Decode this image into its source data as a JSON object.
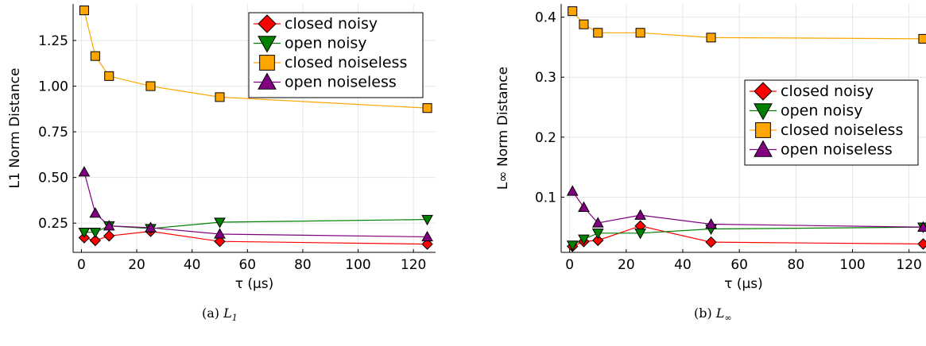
{
  "figure": {
    "captions": [
      {
        "label": "(a)",
        "symbol": "L",
        "subscript": "1"
      },
      {
        "label": "(b)",
        "symbol": "L",
        "subscript": "∞"
      }
    ]
  },
  "chart_data": [
    {
      "type": "line",
      "xlabel": "τ (μs)",
      "ylabel": "L1 Norm Distance",
      "xlim": [
        -3,
        128
      ],
      "ylim": [
        0.09,
        1.45
      ],
      "xticks": [
        0,
        20,
        40,
        60,
        80,
        100,
        120
      ],
      "yticks": [
        0.25,
        0.5,
        0.75,
        1.0,
        1.25
      ],
      "ytick_labels": [
        "0.25",
        "0.50",
        "0.75",
        "1.00",
        "1.25"
      ],
      "grid": true,
      "legend_position": "top-right",
      "x": [
        1,
        5,
        10,
        25,
        50,
        125
      ],
      "series": [
        {
          "name": "closed noisy",
          "color": "#ff0000",
          "marker": "diamond",
          "values": [
            0.17,
            0.155,
            0.18,
            0.205,
            0.15,
            0.135
          ]
        },
        {
          "name": "open noisy",
          "color": "#008000",
          "marker": "triangle-down",
          "values": [
            0.2,
            0.2,
            0.235,
            0.22,
            0.255,
            0.27
          ]
        },
        {
          "name": "closed noiseless",
          "color": "#ffa500",
          "marker": "square",
          "values": [
            1.415,
            1.165,
            1.055,
            1.0,
            0.94,
            0.88
          ]
        },
        {
          "name": "open noiseless",
          "color": "#800080",
          "marker": "triangle-up",
          "values": [
            0.53,
            0.305,
            0.235,
            0.225,
            0.19,
            0.175
          ]
        }
      ]
    },
    {
      "type": "line",
      "xlabel": "τ (μs)",
      "ylabel": "L∞ Norm Distance",
      "xlim": [
        -3,
        126
      ],
      "ylim": [
        0.008,
        0.422
      ],
      "xticks": [
        0,
        20,
        40,
        60,
        80,
        100,
        120
      ],
      "yticks": [
        0.1,
        0.2,
        0.3,
        0.4
      ],
      "ytick_labels": [
        "0.1",
        "0.2",
        "0.3",
        "0.4"
      ],
      "grid": true,
      "legend_position": "right",
      "x": [
        1,
        5,
        10,
        25,
        50,
        125
      ],
      "series": [
        {
          "name": "closed noisy",
          "color": "#ff0000",
          "marker": "diamond",
          "values": [
            0.018,
            0.026,
            0.028,
            0.052,
            0.025,
            0.022
          ]
        },
        {
          "name": "open noisy",
          "color": "#008000",
          "marker": "triangle-down",
          "values": [
            0.02,
            0.03,
            0.04,
            0.04,
            0.047,
            0.05
          ]
        },
        {
          "name": "closed noiseless",
          "color": "#ffa500",
          "marker": "square",
          "values": [
            0.41,
            0.388,
            0.374,
            0.374,
            0.366,
            0.364
          ]
        },
        {
          "name": "open noiseless",
          "color": "#800080",
          "marker": "triangle-up",
          "values": [
            0.11,
            0.083,
            0.057,
            0.07,
            0.055,
            0.05
          ]
        }
      ]
    }
  ]
}
